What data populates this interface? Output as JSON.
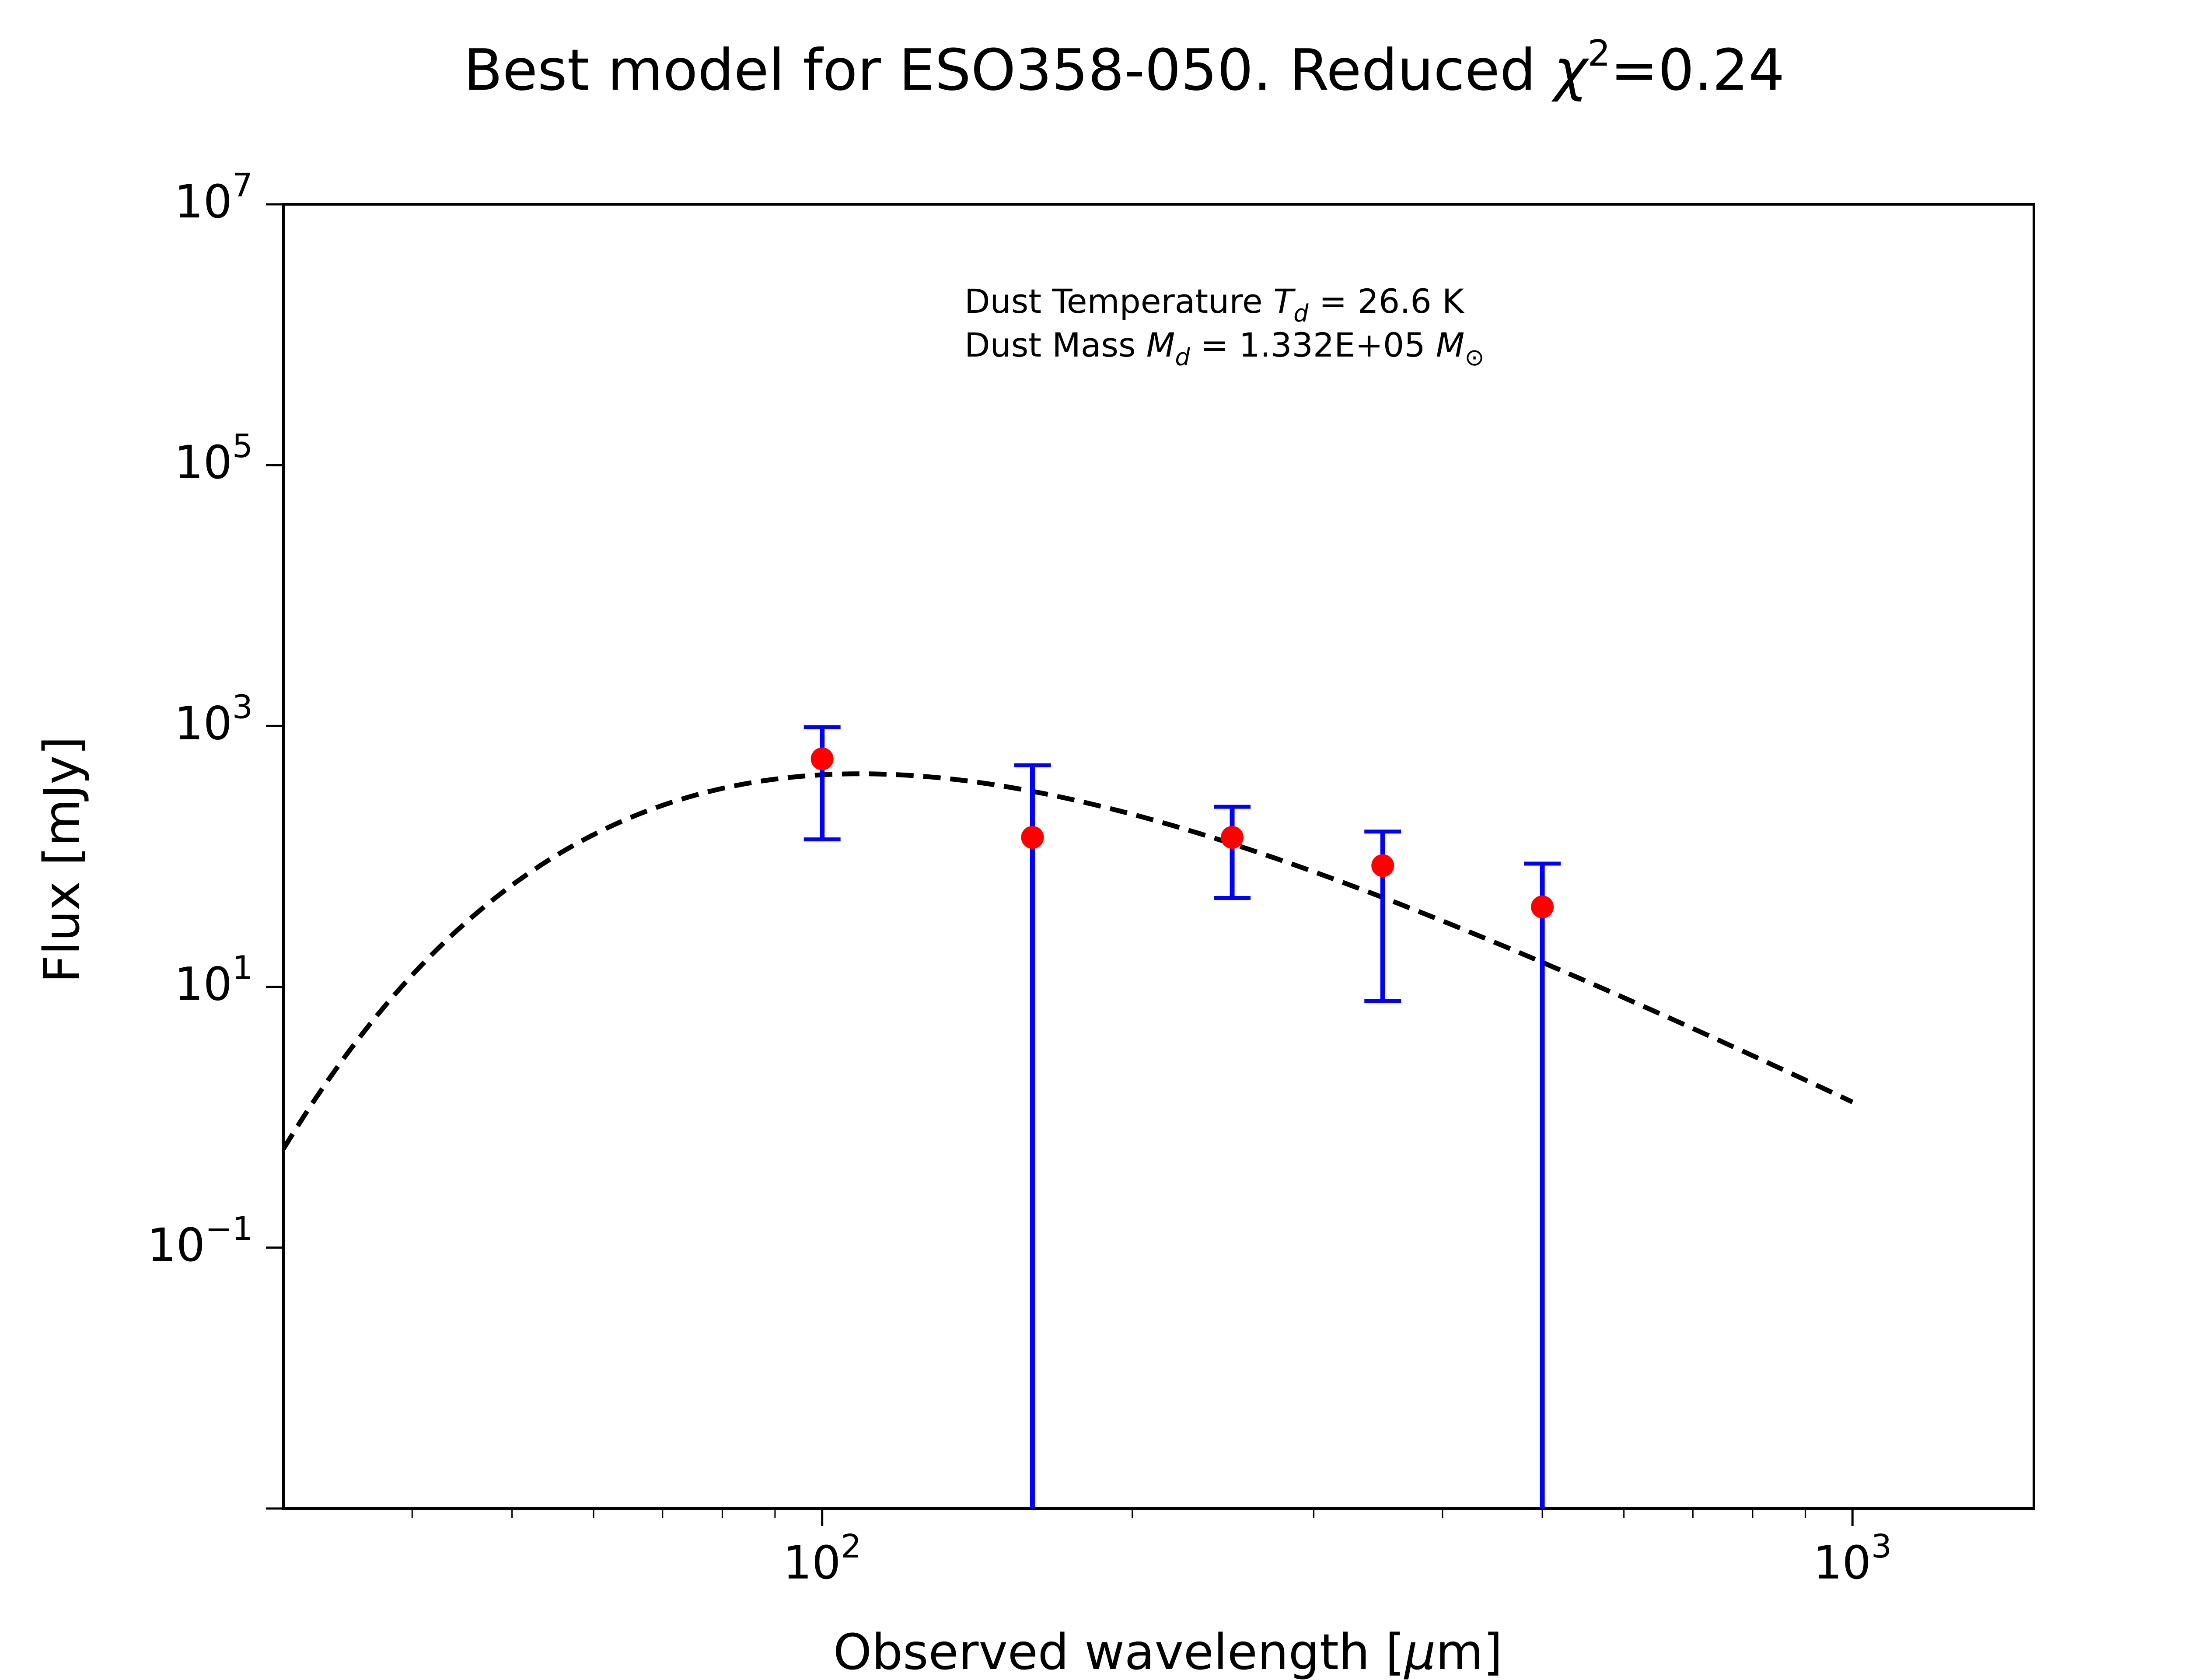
{
  "chart_data": {
    "type": "scatter",
    "title": {
      "text_before": "Best model for ESO358-050. Reduced ",
      "chi": "χ",
      "sup": "2",
      "text_after": "=0.24"
    },
    "xlabel": {
      "text_before": "Observed wavelength [",
      "mu": "μ",
      "text_after": "m]"
    },
    "ylabel": "Flux [mJy]",
    "xscale": "log",
    "yscale": "log",
    "xlim": [
      30,
      1500
    ],
    "ylim": [
      0.001,
      10000000
    ],
    "x_ticks": [
      {
        "value": 100,
        "base": "10",
        "exp": "2"
      },
      {
        "value": 1000,
        "base": "10",
        "exp": "3"
      }
    ],
    "y_ticks": [
      {
        "value": 0.1,
        "base": "10",
        "exp": "−1"
      },
      {
        "value": 10,
        "base": "10",
        "exp": "1"
      },
      {
        "value": 1000,
        "base": "10",
        "exp": "3"
      },
      {
        "value": 100000,
        "base": "10",
        "exp": "5"
      },
      {
        "value": 10000000,
        "base": "10",
        "exp": "7"
      }
    ],
    "grid": false,
    "annotation": {
      "line1_text": "Dust Temperature ",
      "line1_sym": "T",
      "line1_sub": "d",
      "line1_value": " = 26.6 K",
      "line2_text": "Dust Mass ",
      "line2_sym": "M",
      "line2_sub": "d",
      "line2_value": " = 1.332E+05 ",
      "line2_unit_sym": "M",
      "line2_unit_sub": "⊙"
    },
    "series": [
      {
        "type": "scatter-errorbar",
        "points": [
          {
            "x": 100,
            "y": 560,
            "ylow": 135,
            "yhigh": 980
          },
          {
            "x": 160,
            "y": 140,
            "ylow": 0.001,
            "yhigh": 500
          },
          {
            "x": 250,
            "y": 140,
            "ylow": 48,
            "yhigh": 240
          },
          {
            "x": 350,
            "y": 85,
            "ylow": 7.8,
            "yhigh": 155
          },
          {
            "x": 500,
            "y": 41,
            "ylow": 0.001,
            "yhigh": 88
          }
        ]
      },
      {
        "type": "model-curve",
        "temperature_K": 26.6,
        "beta": 2,
        "peak_flux": 430,
        "x_range": [
          30,
          1000
        ]
      }
    ],
    "colors": {
      "points": "#ff0000",
      "errorbars": "#0000ff",
      "model": "#000000",
      "axes": "#000000"
    }
  }
}
